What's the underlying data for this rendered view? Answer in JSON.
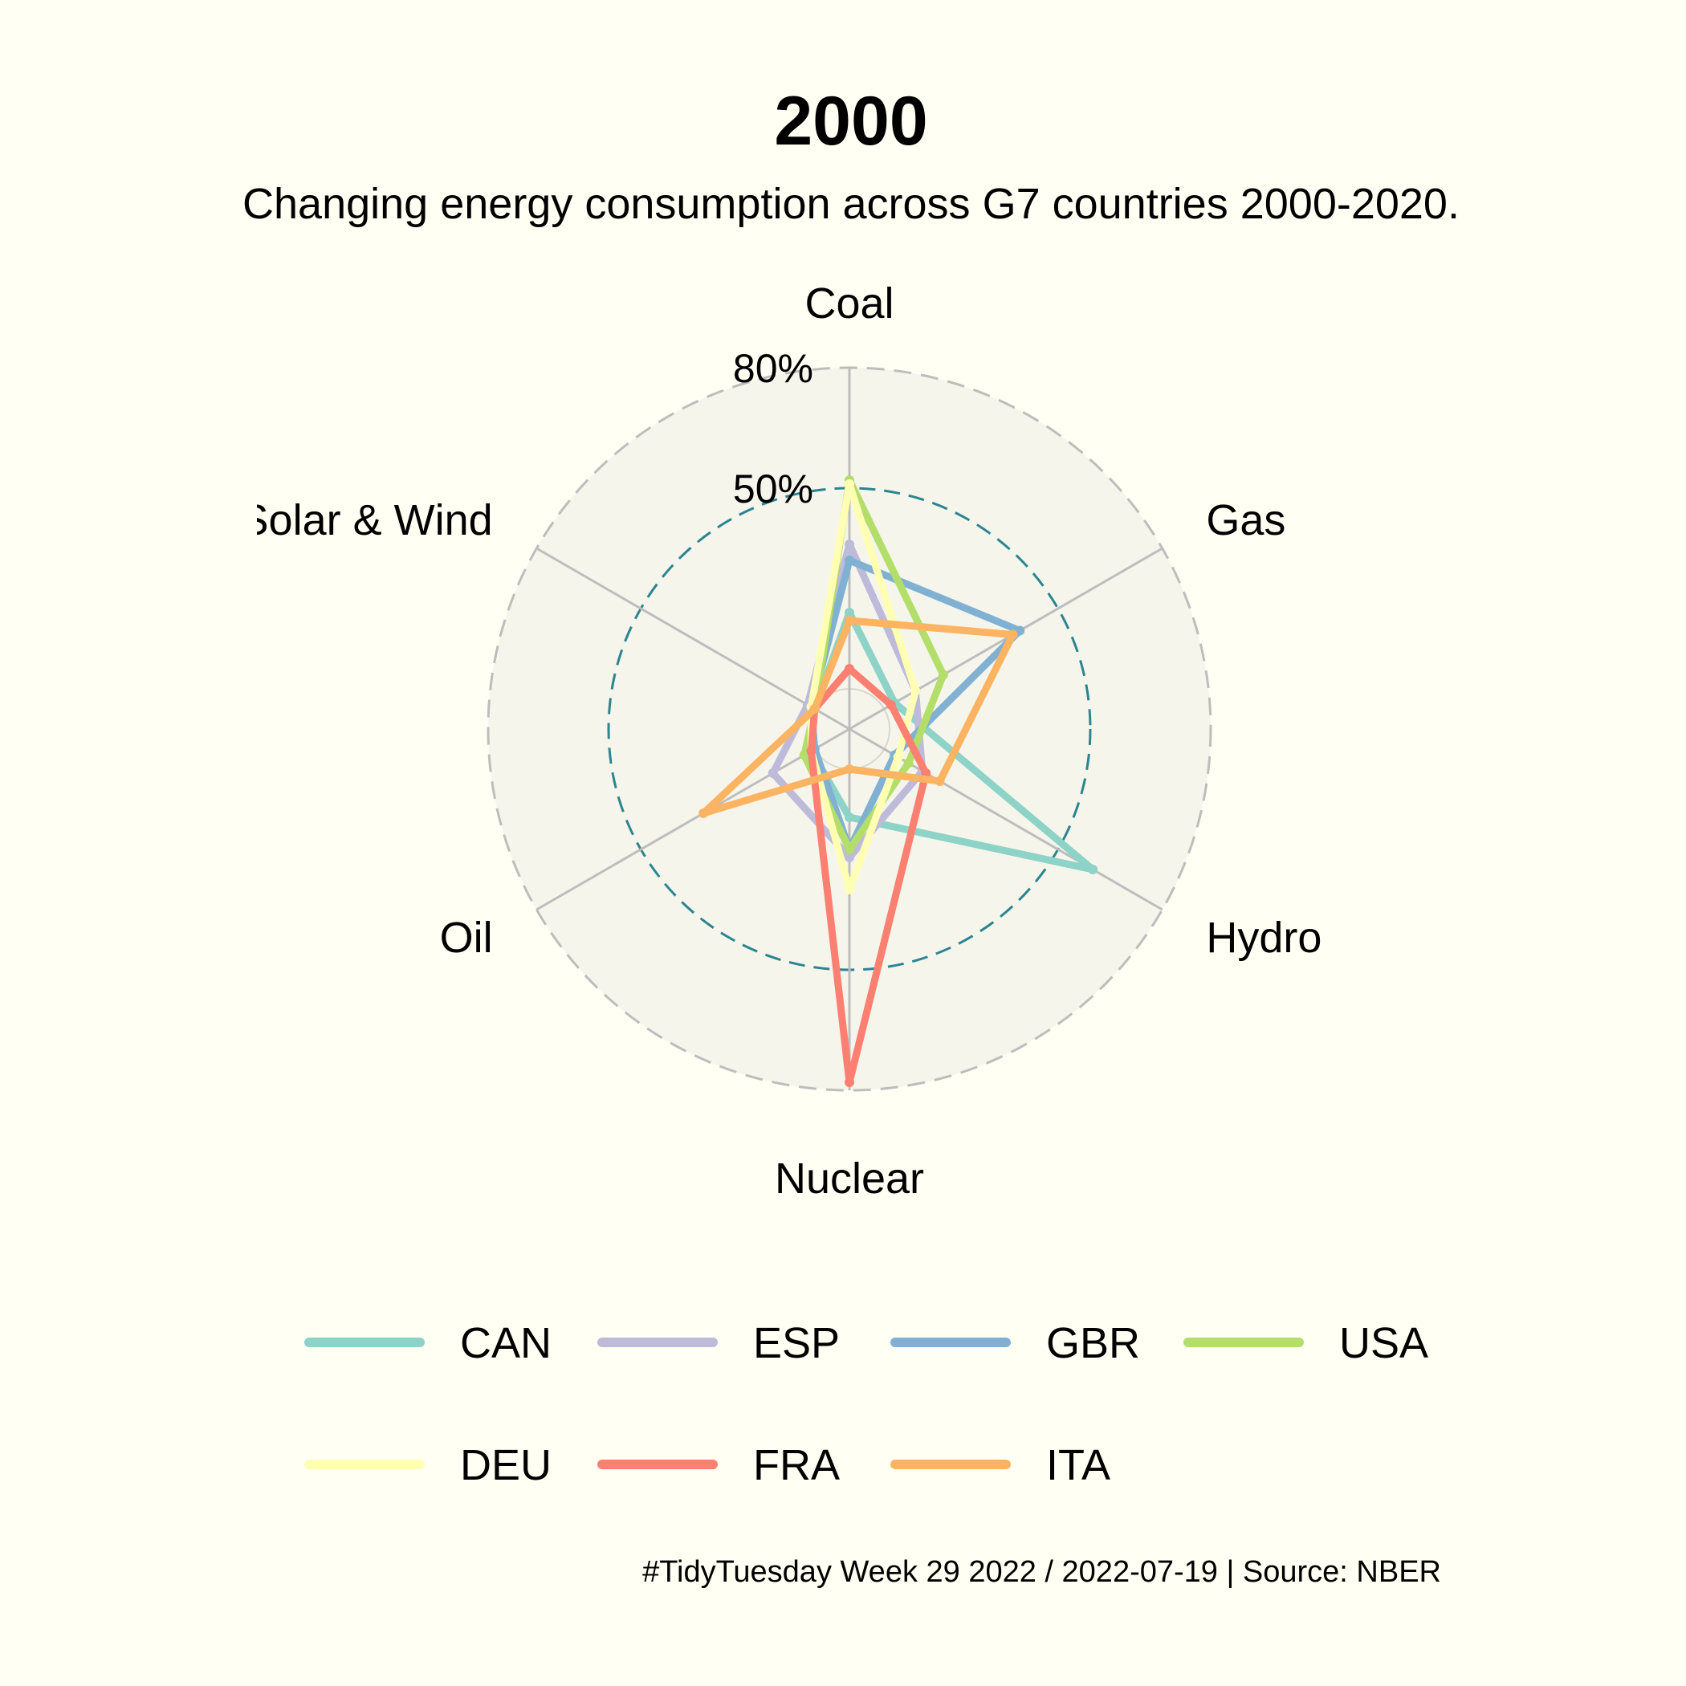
{
  "colors": {
    "background": "#FFFFF3",
    "plot_background": "#F6F5EC",
    "outer_circle": "#BDBDBD",
    "mid_circle": "#2A8590",
    "spokes": "#BDBDBD"
  },
  "chart_data": {
    "type": "radar",
    "title": "2000",
    "subtitle": "Changing energy consumption across G7 countries 2000-2020.",
    "caption": "#TidyTuesday Week 29 2022 / 2022-07-19 | Source: NBER",
    "axes": [
      "Coal",
      "Gas",
      "Hydro",
      "Nuclear",
      "Oil",
      "Solar & Wind"
    ],
    "rlim": [
      -10,
      80
    ],
    "grid_labels": [
      "80%",
      "50%"
    ],
    "grid_values": [
      80,
      50
    ],
    "legend_position": "bottom",
    "series": [
      {
        "name": "CAN",
        "color": "#8DD3C7",
        "values": [
          19,
          3,
          60,
          12,
          1,
          0
        ]
      },
      {
        "name": "ESP",
        "color": "#BEBADA",
        "values": [
          36,
          9,
          11,
          22,
          12,
          2
        ]
      },
      {
        "name": "GBR",
        "color": "#80B1D3",
        "values": [
          32,
          39,
          3,
          20,
          0,
          1
        ]
      },
      {
        "name": "USA",
        "color": "#B3DE69",
        "values": [
          52,
          17,
          7,
          20,
          3,
          0
        ]
      },
      {
        "name": "DEU",
        "color": "#FFFFB3",
        "values": [
          51,
          9,
          4,
          30,
          1,
          1
        ]
      },
      {
        "name": "FRA",
        "color": "#FB8072",
        "values": [
          5,
          2,
          12,
          78,
          1,
          0
        ]
      },
      {
        "name": "ITA",
        "color": "#FDB462",
        "values": [
          17,
          37,
          16,
          0,
          32,
          0
        ]
      }
    ]
  }
}
